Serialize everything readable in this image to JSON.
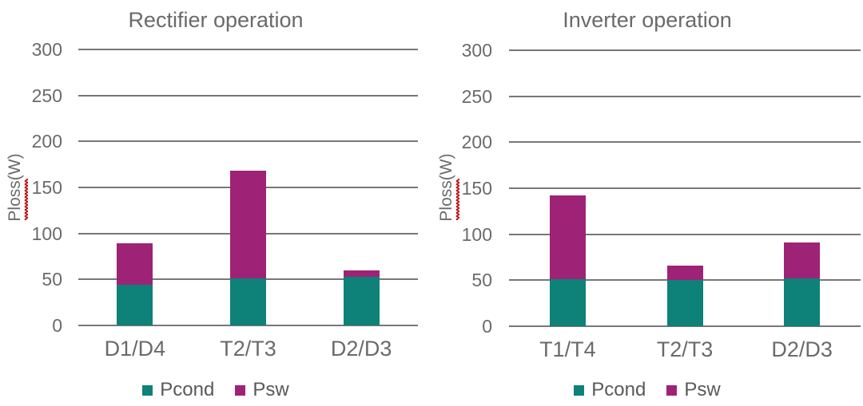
{
  "colors": {
    "pcond": "#0E8178",
    "psw": "#9E2376",
    "gridline": "#777777",
    "text": "#6A6A6A",
    "squiggle": "#C00000",
    "background": "#FFFFFF"
  },
  "chart_data": [
    {
      "type": "bar",
      "stacked": true,
      "title": "Rectifier operation",
      "xlabel": "",
      "ylabel": "Ploss(W)",
      "categories": [
        "D1/D4",
        "T2/T3",
        "D2/D3"
      ],
      "series": [
        {
          "name": "Pcond",
          "color": "#0E8178",
          "values": [
            44,
            51,
            53
          ]
        },
        {
          "name": "Psw",
          "color": "#9E2376",
          "values": [
            45,
            117,
            7
          ]
        }
      ],
      "stack_totals": [
        89,
        168,
        60
      ],
      "ylim": [
        0,
        300
      ],
      "yticks": [
        0,
        50,
        100,
        150,
        200,
        250,
        300
      ],
      "grid": "horizontal",
      "legend_position": "bottom"
    },
    {
      "type": "bar",
      "stacked": true,
      "title": "Inverter operation",
      "xlabel": "",
      "ylabel": "Ploss(W)",
      "categories": [
        "T1/T4",
        "T2/T3",
        "D2/D3"
      ],
      "series": [
        {
          "name": "Pcond",
          "color": "#0E8178",
          "values": [
            51,
            50,
            52
          ]
        },
        {
          "name": "Psw",
          "color": "#9E2376",
          "values": [
            91,
            16,
            39
          ]
        }
      ],
      "stack_totals": [
        142,
        66,
        91
      ],
      "ylim": [
        0,
        300
      ],
      "yticks": [
        0,
        50,
        100,
        150,
        200,
        250,
        300
      ],
      "grid": "horizontal",
      "legend_position": "bottom"
    }
  ]
}
